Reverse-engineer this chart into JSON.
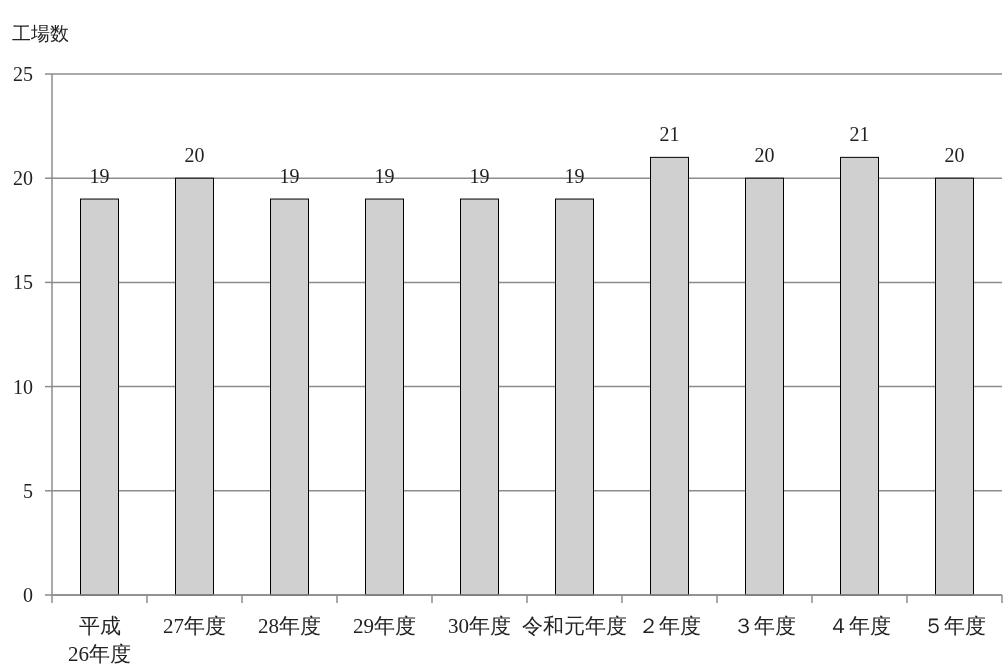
{
  "chart_data": {
    "type": "bar",
    "ylabel": "工場数",
    "categories": [
      "平成26年度",
      "27年度",
      "28年度",
      "29年度",
      "30年度",
      "令和元年度",
      "２年度",
      "３年度",
      "４年度",
      "５年度"
    ],
    "values": [
      19,
      20,
      19,
      19,
      19,
      19,
      21,
      20,
      21,
      20
    ],
    "color": "#d0d0d0",
    "ylim": [
      0,
      25
    ],
    "yticks": [
      0,
      5,
      10,
      15,
      20,
      25
    ],
    "grid": "y",
    "data_labels": true
  }
}
